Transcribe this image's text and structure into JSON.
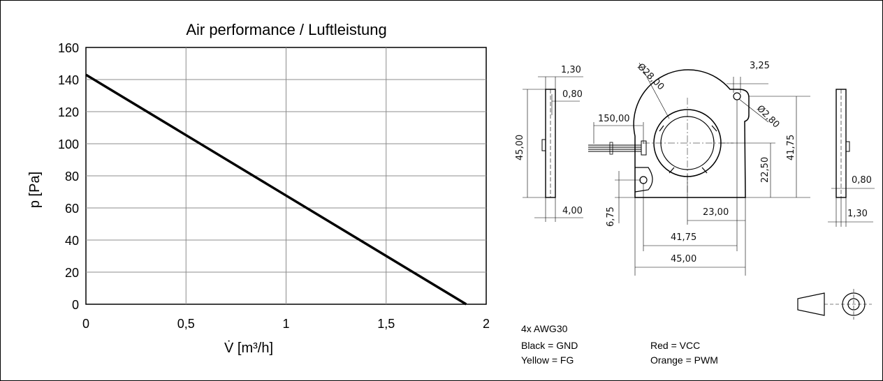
{
  "chart_data": {
    "type": "line",
    "title": "Air performance / Luftleistung",
    "xlabel": "V̇ [m³/h]",
    "ylabel": "p [Pa]",
    "xlim": [
      0,
      2
    ],
    "ylim": [
      0,
      160
    ],
    "x_ticks": [
      "0",
      "0,5",
      "1",
      "1,5",
      "2"
    ],
    "y_ticks": [
      "0",
      "20",
      "40",
      "60",
      "80",
      "100",
      "120",
      "140",
      "160"
    ],
    "grid": true,
    "series": [
      {
        "x": [
          0,
          1.9
        ],
        "y": [
          143,
          0
        ]
      }
    ]
  },
  "drawing": {
    "dimensions": {
      "side_thickness_top": "1,30",
      "side_gap_top": "0,80",
      "side_height": "45,00",
      "side_bottom": "4,00",
      "cable_length": "150,00",
      "hub_diameter": "Ø28,00",
      "hole_diameter": "Ø2,80",
      "hole_offset": "3,25",
      "height_total": "41,75",
      "hub_center_height": "22,50",
      "lower_hole_offset": "6,75",
      "hub_center_x": "23,00",
      "width_holes": "41,75",
      "width_total": "45,00",
      "right_gap": "0,80",
      "right_thickness": "1,30"
    }
  },
  "wiring": {
    "header": "4x AWG30",
    "entries": [
      "Black = GND",
      "Red = VCC",
      "Yellow = FG",
      "Orange = PWM"
    ]
  }
}
